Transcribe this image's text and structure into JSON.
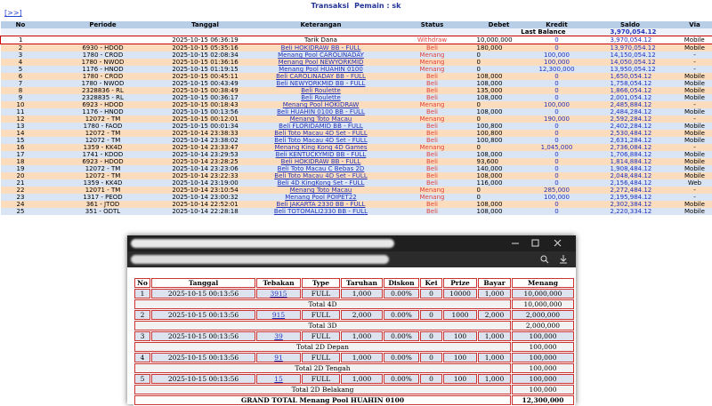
{
  "header": {
    "link": "[>>]",
    "title": "Transaksi",
    "player": "Pemain : sk"
  },
  "table": {
    "columns": [
      "No",
      "Periode",
      "Tanggal",
      "Keterangan",
      "Status",
      "Debet",
      "Kredit",
      "Saldo",
      "Via"
    ],
    "last_balance_label": "Last Balance",
    "last_balance": "3,970,054.12",
    "rows": [
      [
        "1",
        "",
        "2025-10-15 06:36:19",
        "Tarik Dana",
        "Withdraw",
        "10,000,000",
        "0",
        "3,970,054.12",
        "Mobile"
      ],
      [
        "2",
        "6930 - HDOD",
        "2025-10-15 05:35:16",
        "Beli HOKIDRAW BB - FULL",
        "Beli",
        "180,000",
        "0",
        "13,970,054.12",
        "Mobile"
      ],
      [
        "3",
        "1780 - CROD",
        "2025-10-15 02:08:34",
        "Menang Pool CAROLINADAY",
        "Menang",
        "0",
        "100,000",
        "14,150,054.12",
        "-"
      ],
      [
        "4",
        "1780 - NWOD",
        "2025-10-15 01:36:16",
        "Menang Pool NEWYORKMID",
        "Menang",
        "0",
        "100,000",
        "14,050,054.12",
        "-"
      ],
      [
        "5",
        "1176 - HNOD",
        "2025-10-15 01:19:15",
        "Menang Pool HUAHIN 0100",
        "Menang",
        "0",
        "12,300,000",
        "13,950,054.12",
        "-"
      ],
      [
        "6",
        "1780 - CROD",
        "2025-10-15 00:45:11",
        "Beli CAROLINADAY BB - FULL",
        "Beli",
        "108,000",
        "0",
        "1,650,054.12",
        "Mobile"
      ],
      [
        "7",
        "1780 - NWOD",
        "2025-10-15 00:43:49",
        "Beli NEWYORKMID BB - FULL",
        "Beli",
        "108,000",
        "0",
        "1,758,054.12",
        "Mobile"
      ],
      [
        "8",
        "2328836 - RL",
        "2025-10-15 00:38:49",
        "Beli Roulette",
        "Beli",
        "135,000",
        "0",
        "1,866,054.12",
        "Mobile"
      ],
      [
        "9",
        "2328835 - RL",
        "2025-10-15 00:36:17",
        "Beli Roulette",
        "Beli",
        "108,000",
        "0",
        "2,001,054.12",
        "Mobile"
      ],
      [
        "10",
        "6923 - HDOD",
        "2025-10-15 00:18:43",
        "Menang Pool HOKIDRAW",
        "Menang",
        "0",
        "100,000",
        "2,485,884.12",
        "-"
      ],
      [
        "11",
        "1176 - HNOD",
        "2025-10-15 00:13:56",
        "Beli HUAHIN 0100 BB - FULL",
        "Beli",
        "108,000",
        "0",
        "2,484,284.12",
        "Mobile"
      ],
      [
        "12",
        "12072 - TM",
        "2025-10-15 00:12:01",
        "Menang Toto Macau",
        "Menang",
        "0",
        "190,000",
        "2,592,284.12",
        "-"
      ],
      [
        "13",
        "1780 - FAOD",
        "2025-10-15 00:01:34",
        "Beli FLORIDAMID BB - FULL",
        "Beli",
        "100,800",
        "0",
        "2,402,284.12",
        "Mobile"
      ],
      [
        "14",
        "12072 - TM",
        "2025-10-14 23:38:33",
        "Beli Toto Macau 4D Set - FULL",
        "Beli",
        "100,800",
        "0",
        "2,530,484.12",
        "Mobile"
      ],
      [
        "15",
        "12072 - TM",
        "2025-10-14 23:38:02",
        "Beli Toto Macau 4D Set - FULL",
        "Beli",
        "100,800",
        "0",
        "2,631,284.12",
        "Mobile"
      ],
      [
        "16",
        "1359 - KK4D",
        "2025-10-14 23:33:47",
        "Menang King Kong 4D Games",
        "Menang",
        "0",
        "1,045,000",
        "2,736,084.12",
        "-"
      ],
      [
        "17",
        "1741 - KDOD",
        "2025-10-14 23:29:53",
        "Beli KENTUCKYMID BB - FULL",
        "Beli",
        "108,000",
        "0",
        "1,706,884.12",
        "Mobile"
      ],
      [
        "18",
        "6923 - HDOD",
        "2025-10-14 23:28:25",
        "Beli HOKIDRAW BB - FULL",
        "Beli",
        "93,600",
        "0",
        "1,814,884.12",
        "Mobile"
      ],
      [
        "19",
        "12072 - TM",
        "2025-10-14 23:23:06",
        "Beli Toto Macau C Bebas 2D",
        "Beli",
        "140,000",
        "0",
        "1,908,484.12",
        "Mobile"
      ],
      [
        "20",
        "12072 - TM",
        "2025-10-14 23:22:33",
        "Beli Toto Macau 4D Set - FULL",
        "Beli",
        "108,000",
        "0",
        "2,048,484.12",
        "Mobile"
      ],
      [
        "21",
        "1359 - KK4D",
        "2025-10-14 23:19:00",
        "Beli 4D KingKong Set - FULL",
        "Beli",
        "116,000",
        "0",
        "2,156,484.12",
        "Web"
      ],
      [
        "22",
        "12071 - TM",
        "2025-10-14 23:10:54",
        "Menang Toto Macau",
        "Menang",
        "0",
        "285,000",
        "2,272,484.12",
        "-"
      ],
      [
        "23",
        "1317 - PEOD",
        "2025-10-14 23:00:32",
        "Menang Pool POIPET22",
        "Menang",
        "0",
        "100,000",
        "2,195,984.12",
        "-"
      ],
      [
        "24",
        "361 - JTOD",
        "2025-10-14 22:52:01",
        "Beli JAKARTA 2330 BB - FULL",
        "Beli",
        "108,000",
        "0",
        "2,302,384.12",
        "Mobile"
      ],
      [
        "25",
        "351 - ODTL",
        "2025-10-14 22:28:18",
        "Beli TOTOMALI2330 BB - FULL",
        "Beli",
        "108,000",
        "0",
        "2,220,334.12",
        "Mobile"
      ]
    ]
  },
  "popup": {
    "columns": [
      "No",
      "Tanggal",
      "Tebakan",
      "Type",
      "Taruhan",
      "Diskon",
      "Kei",
      "Prize",
      "Bayar",
      "Menang"
    ],
    "groups": [
      {
        "row": [
          "1",
          "2025-10-15 00:13:56",
          "3915",
          "FULL",
          "1,000",
          "0.00%",
          "0",
          "10000",
          "1,000",
          "10,000,000"
        ],
        "total_label": "Total 4D",
        "total": "10,000,000"
      },
      {
        "row": [
          "2",
          "2025-10-15 00:13:56",
          "915",
          "FULL",
          "2,000",
          "0.00%",
          "0",
          "1000",
          "2,000",
          "2,000,000"
        ],
        "total_label": "Total 3D",
        "total": "2,000,000"
      },
      {
        "row": [
          "3",
          "2025-10-15 00:13:56",
          "39",
          "FULL",
          "1,000",
          "0.00%",
          "0",
          "100",
          "1,000",
          "100,000"
        ],
        "total_label": "Total 2D Depan",
        "total": "100,000"
      },
      {
        "row": [
          "4",
          "2025-10-15 00:13:56",
          "91",
          "FULL",
          "1,000",
          "0.00%",
          "0",
          "100",
          "1,000",
          "100,000"
        ],
        "total_label": "Total 2D Tengah",
        "total": "100,000"
      },
      {
        "row": [
          "5",
          "2025-10-15 00:13:56",
          "15",
          "FULL",
          "1,000",
          "0.00%",
          "0",
          "100",
          "1,000",
          "100,000"
        ],
        "total_label": "Total 2D Belakang",
        "total": "100,000"
      }
    ],
    "grand_total_label": "GRAND TOTAL  Menang Pool HUAHIN 0100",
    "grand_total": "12,300,000"
  }
}
